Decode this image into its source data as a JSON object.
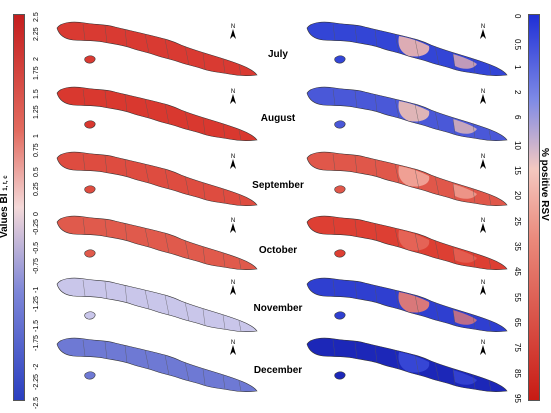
{
  "legend_left": {
    "title_main": "Values BI",
    "title_sub": "1, t, c",
    "ticks": [
      "2.5",
      "2.25",
      "2",
      "1.75",
      "1.5",
      "1.25",
      "1",
      "0.75",
      "0.5",
      "0.25",
      "0",
      "-0.25",
      "-0.5",
      "-0.75",
      "-1",
      "-1.25",
      "-1.5",
      "-1.75",
      "-2",
      "-2.25",
      "-2.5"
    ],
    "colors": {
      "high": "#c41e1e",
      "mid": "#f4d9d9",
      "low": "#2a3fc0"
    }
  },
  "legend_right": {
    "title": "% positive RSV",
    "ticks": [
      "0",
      "0.5",
      "1",
      "2",
      "6",
      "10",
      "15",
      "20",
      "25",
      "35",
      "45",
      "55",
      "65",
      "75",
      "85",
      "95"
    ],
    "colors": {
      "low": "#1f2fd6",
      "mid": "#f4c8c0",
      "high": "#c81b14"
    }
  },
  "months": [
    "July",
    "August",
    "September",
    "October",
    "November",
    "December"
  ],
  "north_label": "N",
  "maps_left": [
    {
      "month": "July",
      "fill": "#d93a32"
    },
    {
      "month": "August",
      "fill": "#d9382f"
    },
    {
      "month": "September",
      "fill": "#de4c40"
    },
    {
      "month": "October",
      "fill": "#e05a4c"
    },
    {
      "month": "November",
      "fill": "#c9c6ea"
    },
    {
      "month": "December",
      "fill": "#6e79d4"
    }
  ],
  "maps_right": [
    {
      "month": "July",
      "fill": "#3345d6",
      "patch": "#f0b7b0"
    },
    {
      "month": "August",
      "fill": "#4a58d8",
      "patch": "#f0c0b4"
    },
    {
      "month": "September",
      "fill": "#e0574a",
      "patch": "#f2a89c"
    },
    {
      "month": "October",
      "fill": "#dd3f33",
      "patch": "#e6675a"
    },
    {
      "month": "November",
      "fill": "#2f3fd0",
      "patch": "#ec7e70"
    },
    {
      "month": "December",
      "fill": "#1c27b8",
      "patch": "#3a4ad8"
    }
  ]
}
